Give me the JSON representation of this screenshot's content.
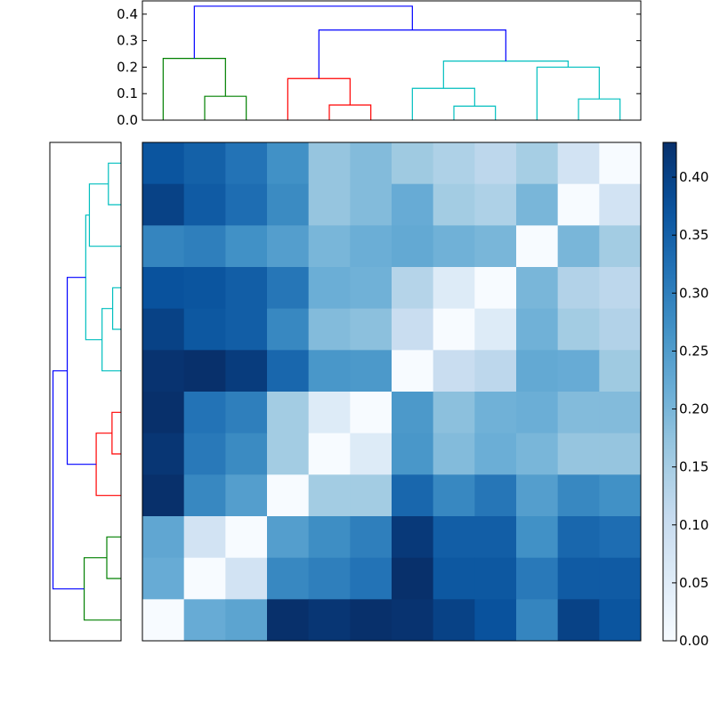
{
  "chart_data": [
    {
      "type": "dendrogram",
      "panel": "top",
      "orientation": "top",
      "ylim": [
        0,
        0.45
      ],
      "yticks": [
        0.0,
        0.1,
        0.2,
        0.3,
        0.4
      ],
      "ytick_labels": [
        "0.0",
        "0.1",
        "0.2",
        "0.3",
        "0.4"
      ],
      "leaf_count": 12,
      "colors": {
        "green": "#008000",
        "red": "#ff0000",
        "cyan": "#00bfbf",
        "blue": "#0000ff"
      },
      "links": [
        {
          "left": 1,
          "right": 2,
          "left_h": 0,
          "right_h": 0,
          "height": 0.09,
          "color": "green"
        },
        {
          "left": 0,
          "right": 1.5,
          "left_h": 0,
          "right_h": 0.09,
          "height": 0.233,
          "color": "green"
        },
        {
          "left": 4,
          "right": 5,
          "left_h": 0,
          "right_h": 0,
          "height": 0.057,
          "color": "red"
        },
        {
          "left": 3,
          "right": 4.5,
          "left_h": 0,
          "right_h": 0.057,
          "height": 0.157,
          "color": "red"
        },
        {
          "left": 7,
          "right": 8,
          "left_h": 0,
          "right_h": 0,
          "height": 0.053,
          "color": "cyan"
        },
        {
          "left": 6,
          "right": 7.5,
          "left_h": 0,
          "right_h": 0.053,
          "height": 0.12,
          "color": "cyan"
        },
        {
          "left": 10,
          "right": 11,
          "left_h": 0,
          "right_h": 0,
          "height": 0.08,
          "color": "cyan"
        },
        {
          "left": 9,
          "right": 10.5,
          "left_h": 0,
          "right_h": 0.08,
          "height": 0.2,
          "color": "cyan"
        },
        {
          "left": 6.75,
          "right": 9.75,
          "left_h": 0.12,
          "right_h": 0.2,
          "height": 0.223,
          "color": "cyan"
        },
        {
          "left": 3.75,
          "right": 8.25,
          "left_h": 0.157,
          "right_h": 0.223,
          "height": 0.34,
          "color": "blue"
        },
        {
          "left": 0.75,
          "right": 6,
          "left_h": 0.233,
          "right_h": 0.34,
          "height": 0.43,
          "color": "blue"
        }
      ]
    },
    {
      "type": "dendrogram",
      "panel": "left",
      "orientation": "left",
      "xlim": [
        0.45,
        0
      ],
      "leaf_count": 12,
      "links_from": "top dendrogram, leaves mirrored (row r = column 11 - r)"
    },
    {
      "type": "heatmap",
      "rows": 12,
      "cols": 12,
      "colormap": "Blues",
      "vmin": 0,
      "vmax": 0.43,
      "values": [
        [
          0.37,
          0.35,
          0.32,
          0.27,
          0.17,
          0.19,
          0.16,
          0.14,
          0.12,
          0.15,
          0.08,
          0.0
        ],
        [
          0.4,
          0.36,
          0.33,
          0.28,
          0.17,
          0.19,
          0.22,
          0.155,
          0.14,
          0.2,
          0.0,
          0.08
        ],
        [
          0.29,
          0.3,
          0.27,
          0.245,
          0.2,
          0.215,
          0.225,
          0.21,
          0.2,
          0.0,
          0.2,
          0.155
        ],
        [
          0.375,
          0.37,
          0.355,
          0.315,
          0.215,
          0.21,
          0.13,
          0.055,
          0.0,
          0.2,
          0.135,
          0.12
        ],
        [
          0.4,
          0.365,
          0.355,
          0.285,
          0.19,
          0.18,
          0.1,
          0.0,
          0.055,
          0.21,
          0.155,
          0.135
        ],
        [
          0.425,
          0.43,
          0.41,
          0.34,
          0.26,
          0.255,
          0.0,
          0.1,
          0.12,
          0.225,
          0.22,
          0.16
        ],
        [
          0.43,
          0.32,
          0.3,
          0.155,
          0.055,
          0.0,
          0.255,
          0.18,
          0.21,
          0.215,
          0.19,
          0.19
        ],
        [
          0.42,
          0.31,
          0.28,
          0.155,
          0.0,
          0.055,
          0.26,
          0.19,
          0.215,
          0.2,
          0.17,
          0.17
        ],
        [
          0.43,
          0.285,
          0.245,
          0.0,
          0.155,
          0.155,
          0.34,
          0.285,
          0.315,
          0.245,
          0.285,
          0.27
        ],
        [
          0.23,
          0.08,
          0.0,
          0.245,
          0.275,
          0.3,
          0.415,
          0.355,
          0.355,
          0.27,
          0.34,
          0.33
        ],
        [
          0.22,
          0.0,
          0.08,
          0.285,
          0.3,
          0.32,
          0.43,
          0.365,
          0.365,
          0.31,
          0.36,
          0.36
        ],
        [
          0.0,
          0.22,
          0.235,
          0.43,
          0.42,
          0.43,
          0.425,
          0.4,
          0.375,
          0.29,
          0.4,
          0.37
        ]
      ]
    },
    {
      "type": "colorbar",
      "range": [
        0,
        0.43
      ],
      "ticks": [
        0.0,
        0.05,
        0.1,
        0.15,
        0.2,
        0.25,
        0.3,
        0.35,
        0.4
      ],
      "tick_labels": [
        "0.00",
        "0.05",
        "0.10",
        "0.15",
        "0.20",
        "0.25",
        "0.30",
        "0.35",
        "0.40"
      ]
    }
  ]
}
